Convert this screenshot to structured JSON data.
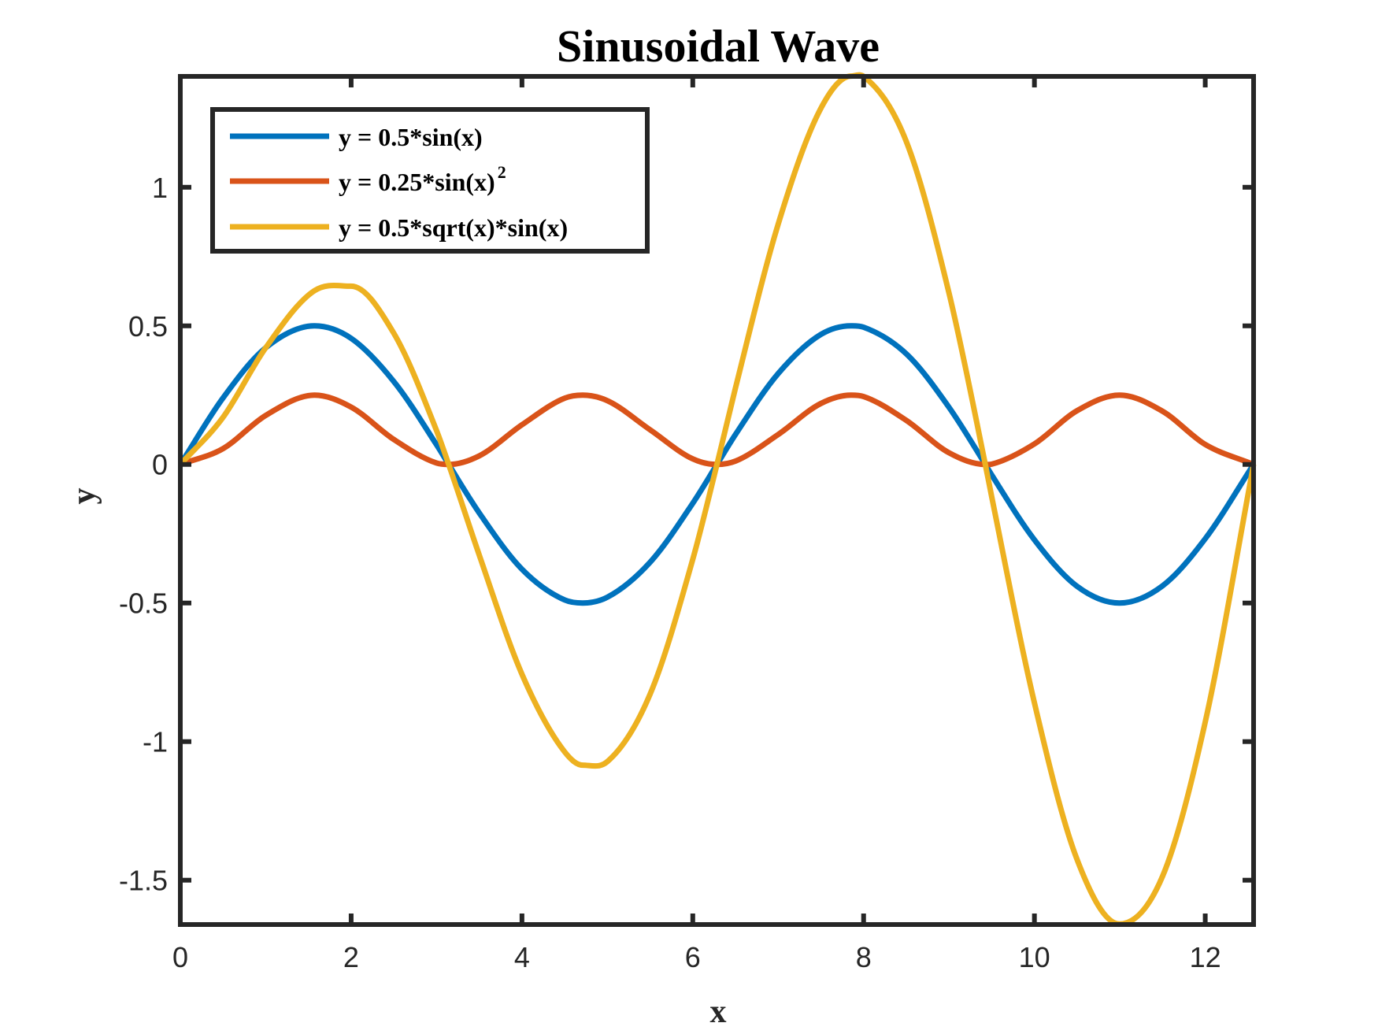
{
  "chart_data": {
    "type": "line",
    "title": "Sinusoidal Wave",
    "xlabel": "x",
    "ylabel": "y",
    "xlim": [
      0,
      12.566
    ],
    "ylim": [
      -1.66,
      1.4
    ],
    "xticks": [
      0,
      2,
      4,
      6,
      8,
      10,
      12
    ],
    "xtick_labels": [
      "0",
      "2",
      "4",
      "6",
      "8",
      "10",
      "12"
    ],
    "yticks": [
      -1.5,
      -1,
      -0.5,
      0,
      0.5,
      1
    ],
    "ytick_labels": [
      "-1.5",
      "-1",
      "-0.5",
      "0",
      "0.5",
      "1"
    ],
    "grid": false,
    "legend_position": "top-left",
    "x": [
      0,
      0.5,
      1.0,
      1.571,
      2.0,
      2.5,
      3.0,
      3.142,
      3.5,
      4.0,
      4.5,
      4.712,
      5.0,
      5.5,
      6.0,
      6.283,
      6.5,
      7.0,
      7.5,
      7.854,
      8.0,
      8.5,
      9.0,
      9.425,
      9.5,
      10.0,
      10.5,
      10.996,
      11.5,
      12.0,
      12.566
    ],
    "series": [
      {
        "name": "y = 0.5*sin(x)",
        "color": "#0072BD",
        "values": [
          0,
          0.24,
          0.421,
          0.5,
          0.455,
          0.299,
          0.071,
          0,
          -0.175,
          -0.378,
          -0.489,
          -0.5,
          -0.479,
          -0.353,
          -0.14,
          0,
          0.108,
          0.328,
          0.469,
          0.5,
          0.495,
          0.399,
          0.206,
          0,
          -0.038,
          -0.272,
          -0.44,
          -0.5,
          -0.438,
          -0.268,
          0
        ]
      },
      {
        "name": "y = 0.25*sin(x)",
        "name_sup": "2",
        "color": "#D95319",
        "values": [
          0,
          0.057,
          0.177,
          0.25,
          0.207,
          0.09,
          0.005,
          0,
          0.031,
          0.143,
          0.239,
          0.25,
          0.23,
          0.125,
          0.02,
          0,
          0.012,
          0.108,
          0.22,
          0.25,
          0.245,
          0.159,
          0.042,
          0,
          0.001,
          0.074,
          0.194,
          0.25,
          0.192,
          0.072,
          0
        ]
      },
      {
        "name": "y = 0.5*sqrt(x)*sin(x)",
        "color": "#EDB120",
        "values": [
          0,
          0.17,
          0.421,
          0.627,
          0.643,
          0.473,
          0.122,
          0,
          -0.327,
          -0.757,
          -1.037,
          -1.085,
          -1.072,
          -0.829,
          -0.342,
          0,
          0.276,
          0.867,
          1.285,
          1.401,
          1.4,
          1.165,
          0.618,
          0,
          -0.117,
          -0.86,
          -1.426,
          -1.658,
          -1.486,
          -0.929,
          0
        ]
      }
    ]
  }
}
